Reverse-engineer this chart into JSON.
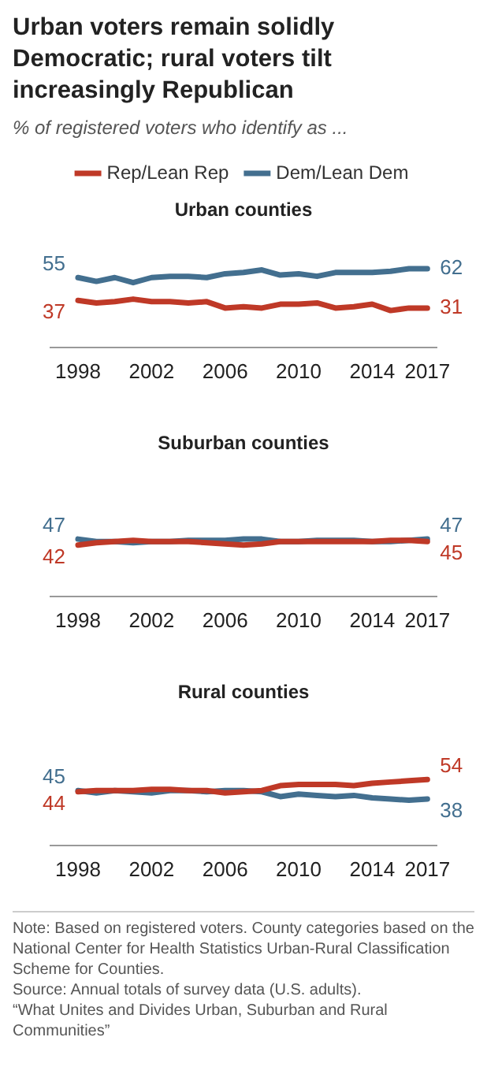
{
  "chart_data": [
    {
      "type": "line",
      "title": "Urban voters remain solidly Democratic; rural voters tilt increasingly Republican",
      "subtitle": "% of registered voters who identify as ...",
      "legend_title": "Urban counties",
      "legend": "top",
      "marker": "none",
      "tick_labels": "x",
      "grid": false,
      "x": [
        1998,
        1999,
        2000,
        2001,
        2002,
        2003,
        2004,
        2005,
        2006,
        2007,
        2008,
        2009,
        2010,
        2011,
        2012,
        2013,
        2014,
        2015,
        2016,
        2017
      ],
      "xlim": [
        1996.5,
        2017.5
      ],
      "xticks": [
        1998,
        2002,
        2006,
        2010,
        2014,
        2017
      ],
      "series": [
        {
          "name": "Rep/Lean Rep",
          "color": "#bf3927",
          "values": [
            37,
            35,
            36,
            38,
            36,
            36,
            35,
            36,
            31,
            32,
            31,
            34,
            34,
            35,
            31,
            32,
            34,
            29,
            31,
            31
          ],
          "value_labels": [
            "37",
            null,
            null,
            null,
            null,
            null,
            null,
            null,
            null,
            null,
            null,
            null,
            null,
            null,
            null,
            null,
            null,
            null,
            null,
            "31"
          ]
        },
        {
          "name": "Dem/Lean Dem",
          "color": "#436f8f",
          "values": [
            55,
            52,
            55,
            51,
            55,
            56,
            56,
            55,
            58,
            59,
            61,
            57,
            58,
            56,
            59,
            59,
            59,
            60,
            62,
            62
          ],
          "value_labels": [
            "55",
            null,
            null,
            null,
            null,
            null,
            null,
            null,
            null,
            null,
            null,
            null,
            null,
            null,
            null,
            null,
            null,
            null,
            null,
            "62"
          ]
        }
      ]
    },
    {
      "type": "line",
      "legend_title": "Suburban counties",
      "marker": "none",
      "tick_labels": "x",
      "grid": false,
      "x": [
        1998,
        1999,
        2000,
        2001,
        2002,
        2003,
        2004,
        2005,
        2006,
        2007,
        2008,
        2009,
        2010,
        2011,
        2012,
        2013,
        2014,
        2015,
        2016,
        2017
      ],
      "xlim": [
        1996.5,
        2017.5
      ],
      "xticks": [
        1998,
        2002,
        2006,
        2010,
        2014,
        2017
      ],
      "series": [
        {
          "color": "#bf3927",
          "values": [
            42,
            44,
            45,
            46,
            45,
            45,
            45,
            44,
            43,
            42,
            43,
            45,
            45,
            45,
            45,
            45,
            45,
            46,
            46,
            45
          ],
          "value_labels": [
            "42",
            null,
            null,
            null,
            null,
            null,
            null,
            null,
            null,
            null,
            null,
            null,
            null,
            null,
            null,
            null,
            null,
            null,
            null,
            "45"
          ]
        },
        {
          "color": "#436f8f",
          "values": [
            47,
            45,
            45,
            44,
            45,
            45,
            46,
            46,
            46,
            47,
            47,
            45,
            45,
            46,
            46,
            46,
            45,
            45,
            46,
            47
          ],
          "value_labels": [
            "47",
            null,
            null,
            null,
            null,
            null,
            null,
            null,
            null,
            null,
            null,
            null,
            null,
            null,
            null,
            null,
            null,
            null,
            null,
            "47"
          ]
        }
      ]
    },
    {
      "type": "line",
      "legend_title": "Rural counties",
      "marker": "none",
      "tick_labels": "x",
      "grid": false,
      "x": [
        1998,
        1999,
        2000,
        2001,
        2002,
        2003,
        2004,
        2005,
        2006,
        2007,
        2008,
        2009,
        2010,
        2011,
        2012,
        2013,
        2014,
        2015,
        2016,
        2017
      ],
      "xlim": [
        1996.5,
        2017.5
      ],
      "xticks": [
        1998,
        2002,
        2006,
        2010,
        2014,
        2017
      ],
      "series": [
        {
          "color": "#bf3927",
          "values": [
            44,
            45,
            45,
            45,
            46,
            46,
            45,
            45,
            43,
            44,
            45,
            49,
            50,
            50,
            50,
            49,
            51,
            52,
            53,
            54
          ],
          "value_labels": [
            "44",
            null,
            null,
            null,
            null,
            null,
            null,
            null,
            null,
            null,
            null,
            null,
            null,
            null,
            null,
            null,
            null,
            null,
            null,
            "54"
          ]
        },
        {
          "color": "#436f8f",
          "values": [
            45,
            43,
            45,
            44,
            43,
            45,
            45,
            44,
            45,
            45,
            44,
            40,
            42,
            41,
            40,
            41,
            39,
            38,
            37,
            38
          ],
          "value_labels": [
            "45",
            null,
            null,
            null,
            null,
            null,
            null,
            null,
            null,
            null,
            null,
            null,
            null,
            null,
            null,
            null,
            null,
            null,
            null,
            "38"
          ]
        }
      ],
      "annotations": [
        "Note: Based on registered voters. County categories based on the National Center for Health Statistics Urban-Rural Classification Scheme for Counties.",
        "Source: Annual totals of survey data (U.S. adults).",
        "“What Unites and Divides Urban, Suburban and Rural Communities”"
      ]
    }
  ]
}
